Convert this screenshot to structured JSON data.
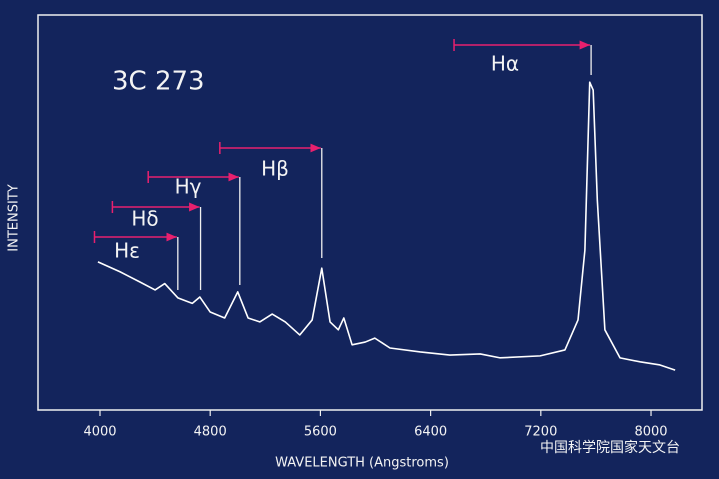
{
  "chart_data": {
    "type": "line",
    "title": "3C 273",
    "x_label": "WAVELENGTH (Angstroms)",
    "y_label": "INTENSITY",
    "watermark": "中国科学院国家天文台",
    "xlim": [
      3550,
      8370
    ],
    "ylim": [
      0,
      100
    ],
    "xticks": [
      4000,
      4800,
      5600,
      6400,
      7200,
      8000
    ],
    "series": [
      {
        "name": "3C 273",
        "color": "#ffffff",
        "x": [
          3985,
          4145,
          4290,
          4400,
          4470,
          4565,
          4670,
          4725,
          4800,
          4905,
          5000,
          5075,
          5160,
          5250,
          5345,
          5450,
          5540,
          5610,
          5670,
          5730,
          5770,
          5830,
          5925,
          5995,
          6105,
          6325,
          6540,
          6760,
          6905,
          7195,
          7375,
          7470,
          7520,
          7555,
          7580,
          7610,
          7665,
          7775,
          7920,
          8065,
          8175
        ],
        "values": [
          37.5,
          35,
          32.4,
          30.4,
          32,
          28.4,
          27,
          28.6,
          24.8,
          23.3,
          29.9,
          23.3,
          22.3,
          24.3,
          22.3,
          19,
          22.8,
          35.9,
          22.3,
          20.3,
          23.3,
          16.5,
          17.2,
          18.2,
          15.7,
          14.7,
          13.9,
          14.2,
          13.2,
          13.7,
          15.2,
          22.8,
          40.5,
          83,
          81,
          53.2,
          20.3,
          13.2,
          12.2,
          11.4,
          10.1
        ]
      }
    ],
    "annotations": [
      {
        "label": "Hα",
        "rest": 6570,
        "observed": 7565
      },
      {
        "label": "Hβ",
        "rest": 4870,
        "observed": 5610
      },
      {
        "label": "Hγ",
        "rest": 4350,
        "observed": 5015
      },
      {
        "label": "Hδ",
        "rest": 4090,
        "observed": 4730
      },
      {
        "label": "Hε",
        "rest": 3960,
        "observed": 4565
      }
    ]
  }
}
